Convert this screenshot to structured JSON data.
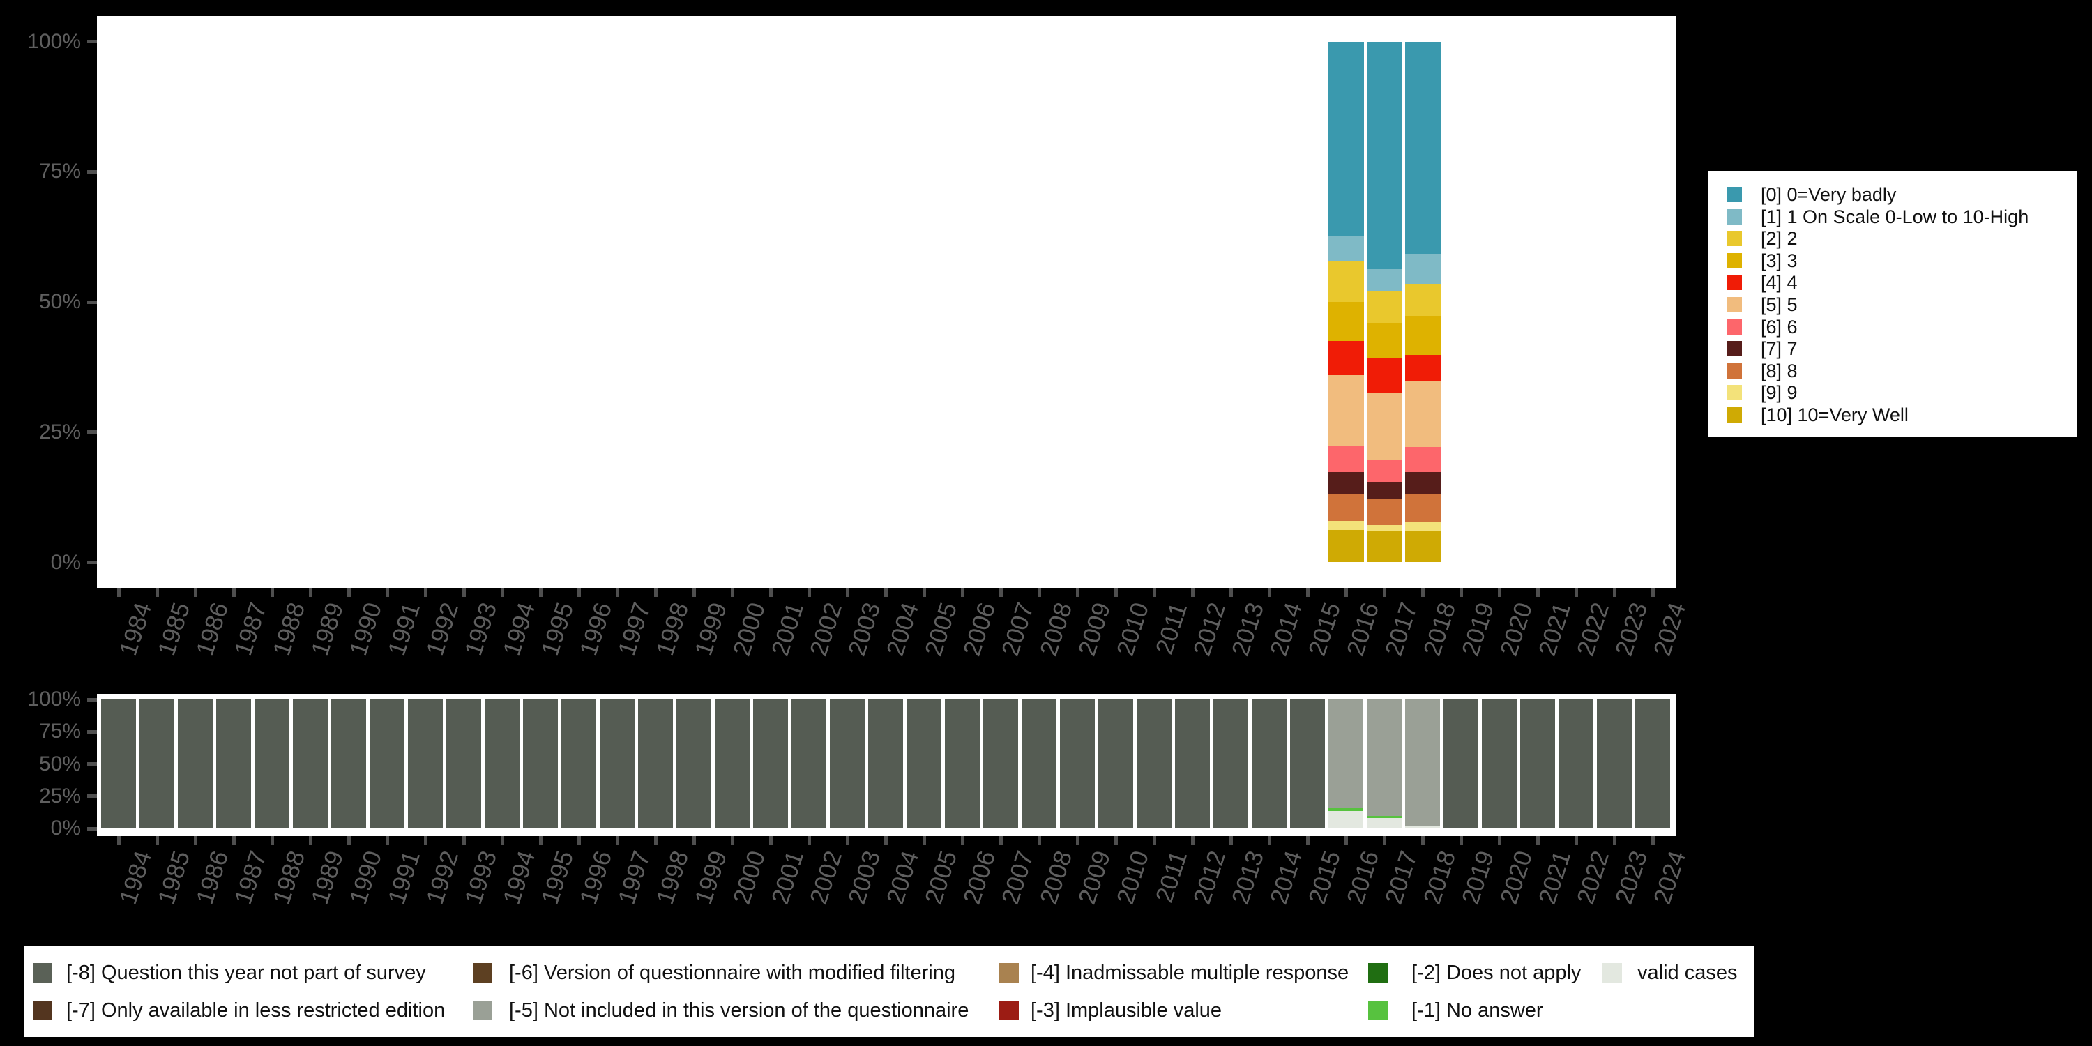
{
  "canvas": {
    "background": "#000000",
    "plot_background": "#ffffff",
    "axis_text_color": "#5f5f5f",
    "tick_color": "#4f4f4f"
  },
  "chart_data": [
    {
      "type": "bar",
      "stacked": true,
      "percent": true,
      "title": "",
      "xlabel": "",
      "ylabel": "",
      "grid": false,
      "legend_position": "right",
      "y_tick_labels": [
        "100%",
        "75%",
        "50%",
        "25%",
        "0%"
      ],
      "ylim": [
        0,
        100
      ],
      "x": [
        1984,
        1985,
        1986,
        1987,
        1988,
        1989,
        1990,
        1991,
        1992,
        1993,
        1994,
        1995,
        1996,
        1997,
        1998,
        1999,
        2000,
        2001,
        2002,
        2003,
        2004,
        2005,
        2006,
        2007,
        2008,
        2009,
        2010,
        2011,
        2012,
        2013,
        2014,
        2015,
        2016,
        2017,
        2018,
        2019,
        2020,
        2021,
        2022,
        2023,
        2024
      ],
      "series": [
        {
          "name": "[0] 0=Very badly",
          "color": "#3a99ae",
          "values": {
            "2016": 37.3,
            "2017": 43.7,
            "2018": 40.7
          }
        },
        {
          "name": "[1] 1 On Scale 0-Low to 10-High",
          "color": "#7fbac6",
          "values": {
            "2016": 4.8,
            "2017": 4.1,
            "2018": 5.8
          }
        },
        {
          "name": "[2] 2",
          "color": "#e9c82d",
          "values": {
            "2016": 7.9,
            "2017": 6.2,
            "2018": 6.2
          }
        },
        {
          "name": "[3] 3",
          "color": "#deb200",
          "values": {
            "2016": 7.5,
            "2017": 6.8,
            "2018": 7.5
          }
        },
        {
          "name": "[4] 4",
          "color": "#f01c06",
          "values": {
            "2016": 6.5,
            "2017": 6.8,
            "2018": 5.1
          }
        },
        {
          "name": "[5] 5",
          "color": "#f1bc7e",
          "values": {
            "2016": 13.7,
            "2017": 12.6,
            "2018": 12.6
          }
        },
        {
          "name": "[6] 6",
          "color": "#fd666b",
          "values": {
            "2016": 5.0,
            "2017": 4.4,
            "2018": 4.8
          }
        },
        {
          "name": "[7] 7",
          "color": "#561d1a",
          "values": {
            "2016": 4.2,
            "2017": 3.1,
            "2018": 4.1
          }
        },
        {
          "name": "[8] 8",
          "color": "#d0733a",
          "values": {
            "2016": 5.1,
            "2017": 5.1,
            "2018": 5.5
          }
        },
        {
          "name": "[9] 9",
          "color": "#f3e27a",
          "values": {
            "2016": 1.8,
            "2017": 1.2,
            "2018": 1.7
          }
        },
        {
          "name": "[10] 10=Very Well",
          "color": "#cfaa04",
          "values": {
            "2016": 6.2,
            "2017": 6.0,
            "2018": 6.0
          }
        }
      ]
    },
    {
      "type": "bar",
      "stacked": true,
      "percent": true,
      "title": "",
      "xlabel": "",
      "ylabel": "",
      "grid": false,
      "legend_position": "bottom",
      "y_tick_labels": [
        "100%",
        "75%",
        "50%",
        "25%",
        "0%"
      ],
      "ylim": [
        0,
        100
      ],
      "x": [
        1984,
        1985,
        1986,
        1987,
        1988,
        1989,
        1990,
        1991,
        1992,
        1993,
        1994,
        1995,
        1996,
        1997,
        1998,
        1999,
        2000,
        2001,
        2002,
        2003,
        2004,
        2005,
        2006,
        2007,
        2008,
        2009,
        2010,
        2011,
        2012,
        2013,
        2014,
        2015,
        2016,
        2017,
        2018,
        2019,
        2020,
        2021,
        2022,
        2023,
        2024
      ],
      "series": [
        {
          "key": "-5",
          "name": "[-5] Not included in this version of the questionnaire",
          "color": "#9aa096",
          "values": {
            "2016": 84.0,
            "2017": 90.5,
            "2018": 98.4
          }
        },
        {
          "key": "-1",
          "name": "[-1] No answer",
          "color": "#57c23f",
          "values": {
            "2016": 2.5,
            "2017": 1.3,
            "2018": 0.2
          }
        },
        {
          "key": "valid",
          "name": "valid cases",
          "color": "#e3e8e0",
          "values": {
            "2016": 13.5,
            "2017": 8.2,
            "2018": 1.4
          }
        },
        {
          "key": "-8",
          "name": "[-8] Question this year not part of survey",
          "color": "#555c53",
          "values": {
            "other_years": 100
          }
        }
      ],
      "legend": [
        {
          "label": "[-8] Question this year not part of survey",
          "color": "#5a6157",
          "row": 0,
          "col": 0
        },
        {
          "label": "[-6] Version of questionnaire with modified filtering",
          "color": "#5d4022",
          "row": 0,
          "col": 1
        },
        {
          "label": "[-4] Inadmissable multiple response",
          "color": "#a98250",
          "row": 0,
          "col": 2
        },
        {
          "label": "[-2] Does not apply",
          "color": "#206e12",
          "row": 0,
          "col": 3
        },
        {
          "label": "valid cases",
          "color": "#e3e8e0",
          "row": 0,
          "col": 4
        },
        {
          "label": "[-7] Only available in less restricted edition",
          "color": "#53351f",
          "row": 1,
          "col": 0
        },
        {
          "label": "[-5] Not included in this version of the questionnaire",
          "color": "#9aa096",
          "row": 1,
          "col": 1
        },
        {
          "label": "[-3] Implausible value",
          "color": "#9c1c14",
          "row": 1,
          "col": 2
        },
        {
          "label": "[-1] No answer",
          "color": "#57c23f",
          "row": 1,
          "col": 3
        }
      ]
    }
  ]
}
